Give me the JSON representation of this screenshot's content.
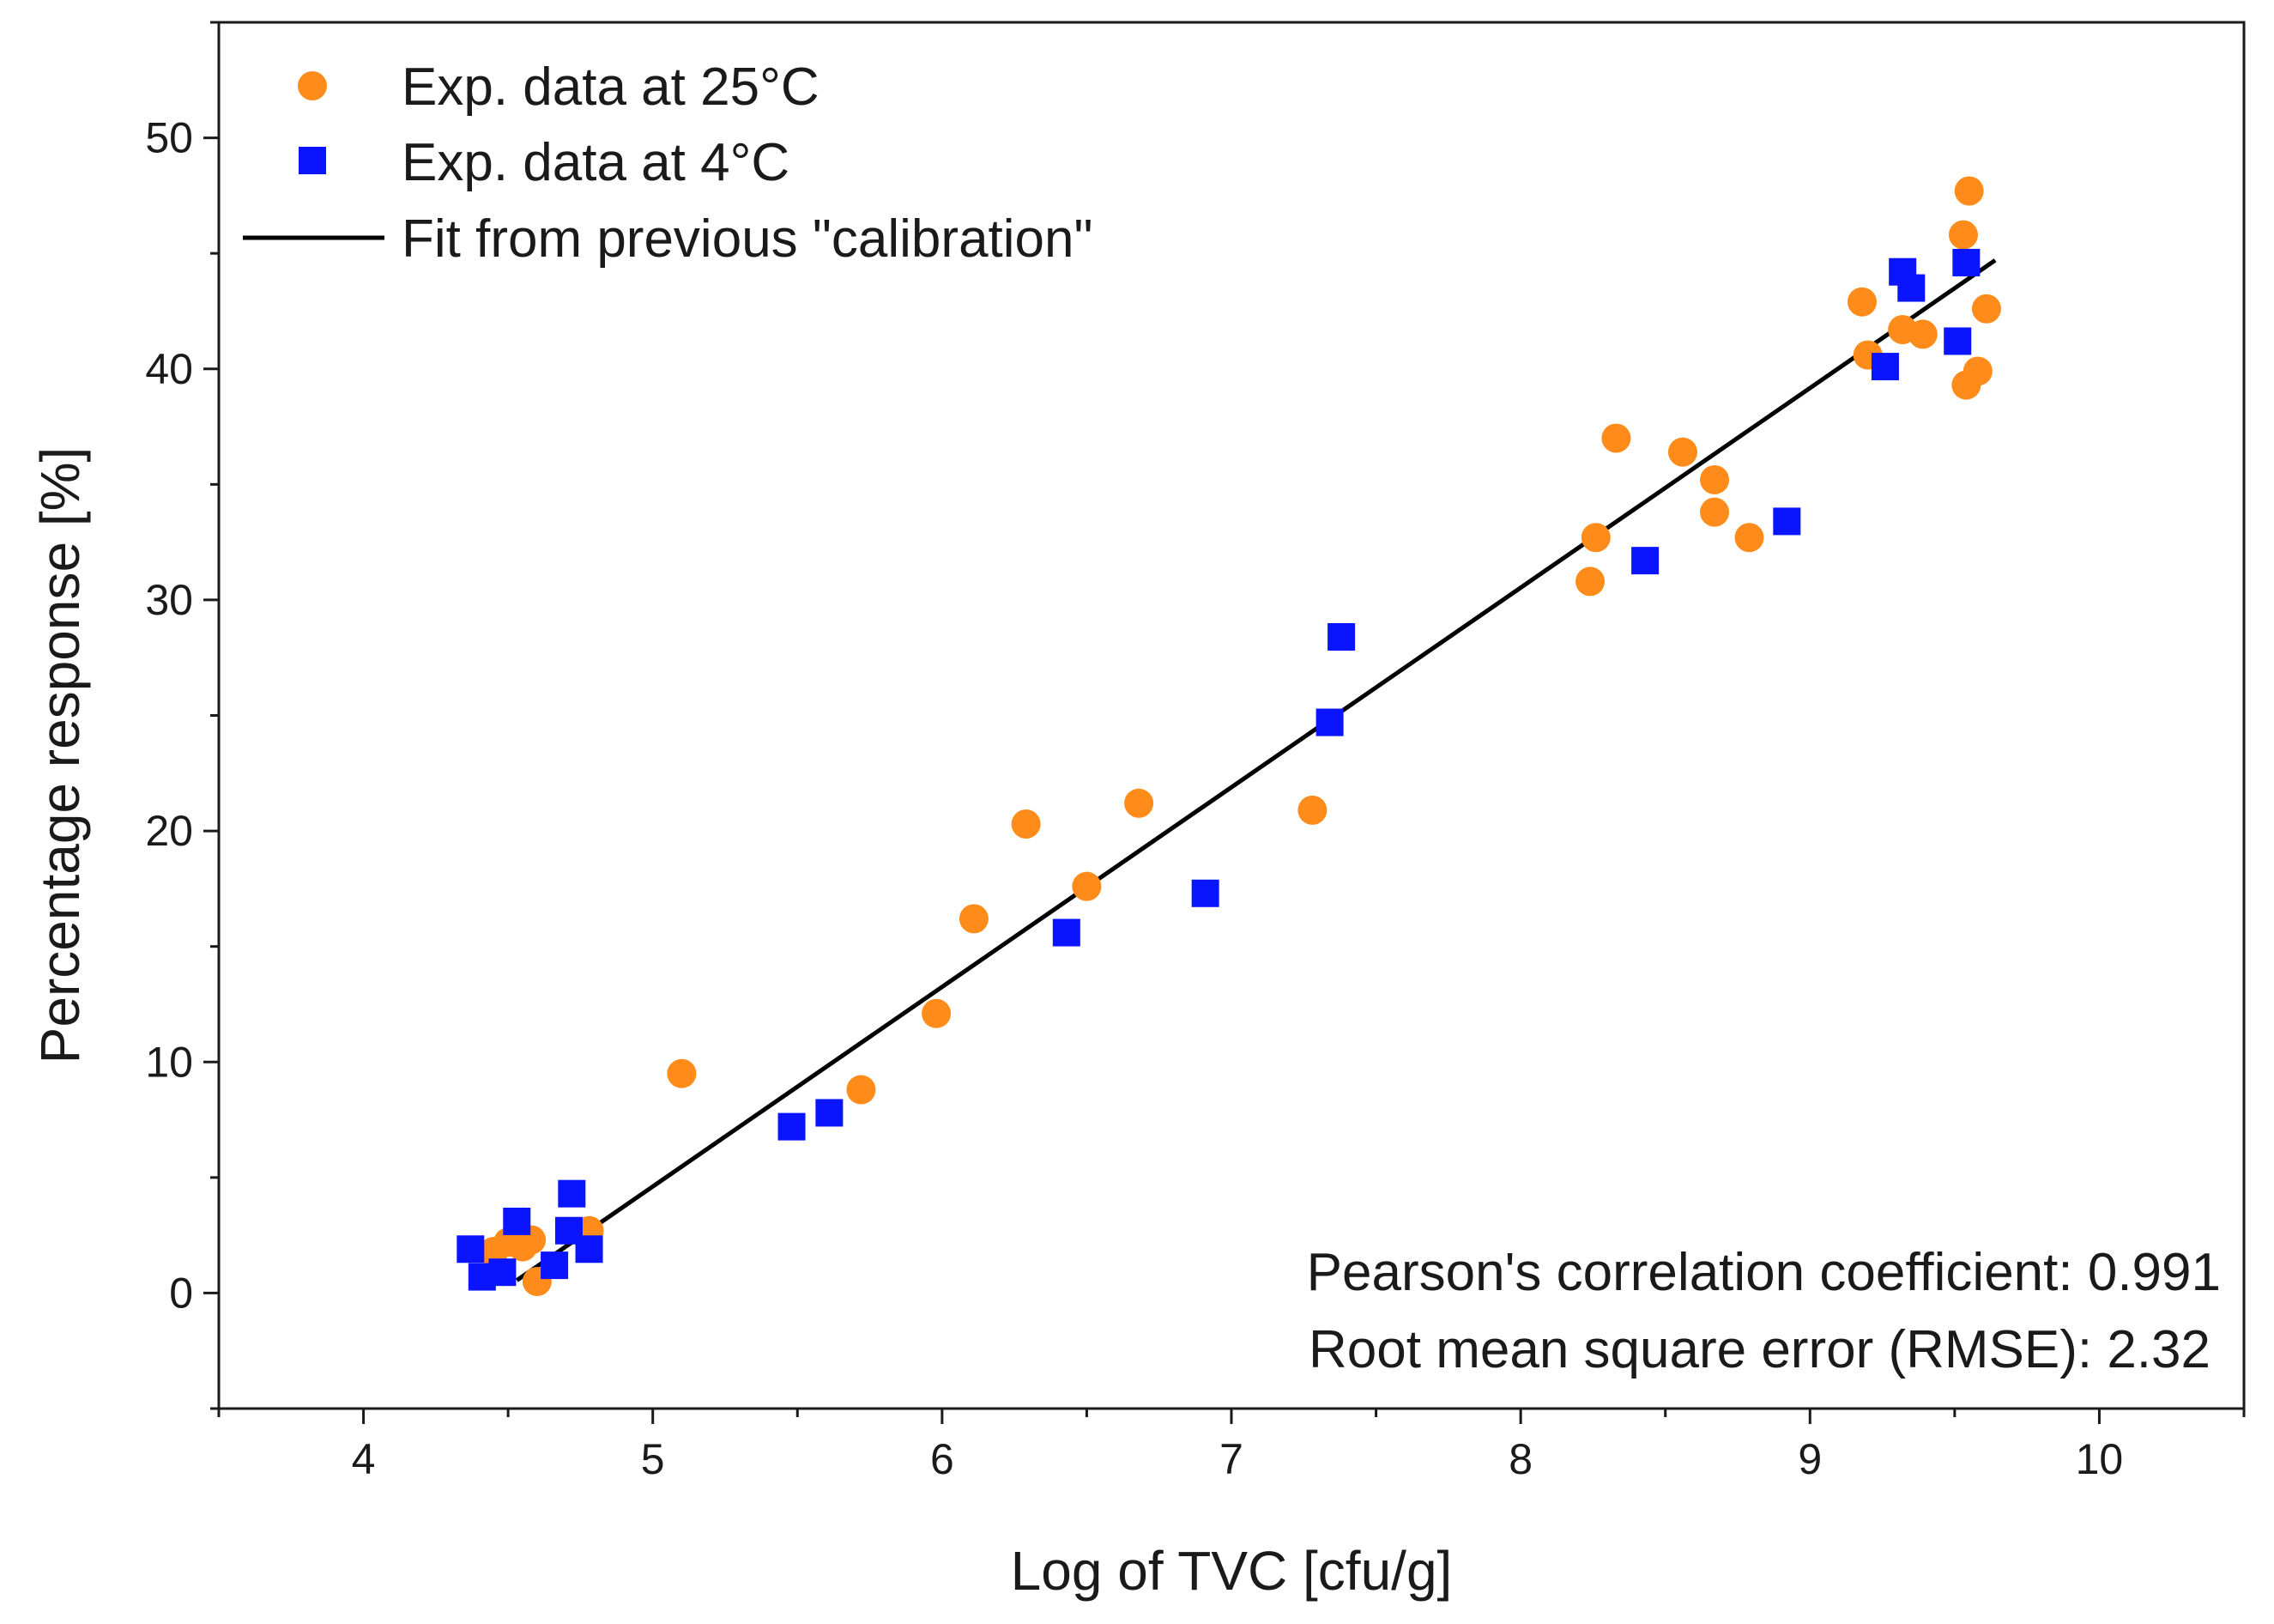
{
  "chart_data": {
    "type": "scatter",
    "title": "",
    "xlabel": "Log of TVC [cfu/g]",
    "ylabel": "Percentage response [%]",
    "xlim": [
      3.5,
      10.5
    ],
    "ylim": [
      -5,
      55
    ],
    "xticks": [
      4,
      5,
      6,
      7,
      8,
      9,
      10
    ],
    "yticks": [
      0,
      10,
      20,
      30,
      40,
      50
    ],
    "xtick_labels": [
      "4",
      "5",
      "6",
      "7",
      "8",
      "9",
      "10"
    ],
    "ytick_labels": [
      "0",
      "10",
      "20",
      "30",
      "40",
      "50"
    ],
    "grid": false,
    "legend_position": "top-left",
    "colors": {
      "orange": "#ff8c1a",
      "blue": "#0a14ff",
      "fit": "#000000"
    },
    "series": [
      {
        "name": "Exp. data at 25°C",
        "marker": "circle",
        "color": "#ff8c1a",
        "points": [
          [
            4.45,
            1.8
          ],
          [
            4.5,
            2.2
          ],
          [
            4.55,
            2.0
          ],
          [
            4.58,
            2.3
          ],
          [
            4.6,
            0.5
          ],
          [
            4.78,
            2.7
          ],
          [
            5.1,
            9.5
          ],
          [
            5.72,
            8.8
          ],
          [
            5.98,
            12.1
          ],
          [
            6.11,
            16.2
          ],
          [
            6.29,
            20.3
          ],
          [
            6.5,
            17.6
          ],
          [
            6.68,
            21.2
          ],
          [
            7.28,
            20.9
          ],
          [
            8.24,
            30.8
          ],
          [
            8.26,
            32.7
          ],
          [
            8.33,
            37.0
          ],
          [
            8.56,
            36.4
          ],
          [
            8.67,
            35.2
          ],
          [
            8.67,
            33.8
          ],
          [
            8.79,
            32.7
          ],
          [
            9.18,
            42.9
          ],
          [
            9.2,
            40.6
          ],
          [
            9.32,
            41.7
          ],
          [
            9.39,
            41.5
          ],
          [
            9.53,
            45.8
          ],
          [
            9.55,
            47.7
          ],
          [
            9.54,
            39.3
          ],
          [
            9.58,
            39.9
          ],
          [
            9.61,
            42.6
          ]
        ]
      },
      {
        "name": "Exp. data at 4°C",
        "marker": "square",
        "color": "#0a14ff",
        "points": [
          [
            4.37,
            1.9
          ],
          [
            4.41,
            0.7
          ],
          [
            4.48,
            0.9
          ],
          [
            4.53,
            3.1
          ],
          [
            4.66,
            1.2
          ],
          [
            4.71,
            2.7
          ],
          [
            4.72,
            4.3
          ],
          [
            4.78,
            1.9
          ],
          [
            5.48,
            7.2
          ],
          [
            5.61,
            7.8
          ],
          [
            6.43,
            15.6
          ],
          [
            6.91,
            17.3
          ],
          [
            7.34,
            24.7
          ],
          [
            7.38,
            28.4
          ],
          [
            8.43,
            31.7
          ],
          [
            8.92,
            33.4
          ],
          [
            9.26,
            40.1
          ],
          [
            9.32,
            44.2
          ],
          [
            9.35,
            43.5
          ],
          [
            9.51,
            41.2
          ],
          [
            9.54,
            44.6
          ]
        ]
      },
      {
        "name": "Fit from previous \"calibration\"",
        "marker": "line",
        "color": "#000000",
        "points": [
          [
            4.53,
            0.55
          ],
          [
            9.64,
            44.7
          ]
        ]
      }
    ],
    "annotations": [
      "Pearson's correlation coefficient: 0.991",
      "Root mean square error (RMSE): 2.32"
    ]
  }
}
